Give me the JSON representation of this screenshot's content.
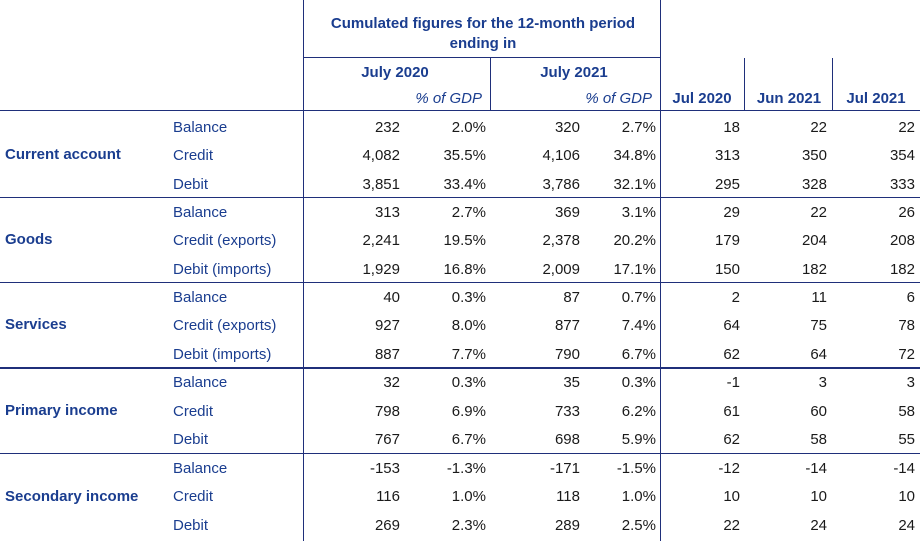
{
  "header": {
    "group_title": "Cumulated figures for the 12-month period ending in",
    "periods": [
      {
        "label": "July 2020",
        "sub": "% of GDP"
      },
      {
        "label": "July 2021",
        "sub": "% of GDP"
      }
    ],
    "months": [
      "Jul 2020",
      "Jun 2021",
      "Jul 2021"
    ]
  },
  "sections": [
    {
      "name": "Current account",
      "rows": [
        {
          "label": "Balance",
          "values": [
            "232",
            "2.0%",
            "320",
            "2.7%",
            "18",
            "22",
            "22"
          ]
        },
        {
          "label": "Credit",
          "values": [
            "4,082",
            "35.5%",
            "4,106",
            "34.8%",
            "313",
            "350",
            "354"
          ]
        },
        {
          "label": "Debit",
          "values": [
            "3,851",
            "33.4%",
            "3,786",
            "32.1%",
            "295",
            "328",
            "333"
          ]
        }
      ]
    },
    {
      "name": "Goods",
      "rows": [
        {
          "label": "Balance",
          "values": [
            "313",
            "2.7%",
            "369",
            "3.1%",
            "29",
            "22",
            "26"
          ]
        },
        {
          "label": "Credit (exports)",
          "values": [
            "2,241",
            "19.5%",
            "2,378",
            "20.2%",
            "179",
            "204",
            "208"
          ]
        },
        {
          "label": "Debit (imports)",
          "values": [
            "1,929",
            "16.8%",
            "2,009",
            "17.1%",
            "150",
            "182",
            "182"
          ]
        }
      ]
    },
    {
      "name": "Services",
      "rows": [
        {
          "label": "Balance",
          "values": [
            "40",
            "0.3%",
            "87",
            "0.7%",
            "2",
            "11",
            "6"
          ]
        },
        {
          "label": "Credit (exports)",
          "values": [
            "927",
            "8.0%",
            "877",
            "7.4%",
            "64",
            "75",
            "78"
          ]
        },
        {
          "label": "Debit (imports)",
          "values": [
            "887",
            "7.7%",
            "790",
            "6.7%",
            "62",
            "64",
            "72"
          ]
        }
      ]
    },
    {
      "name": "Primary income",
      "rows": [
        {
          "label": "Balance",
          "values": [
            "32",
            "0.3%",
            "35",
            "0.3%",
            "-1",
            "3",
            "3"
          ]
        },
        {
          "label": "Credit",
          "values": [
            "798",
            "6.9%",
            "733",
            "6.2%",
            "61",
            "60",
            "58"
          ]
        },
        {
          "label": "Debit",
          "values": [
            "767",
            "6.7%",
            "698",
            "5.9%",
            "62",
            "58",
            "55"
          ]
        }
      ]
    },
    {
      "name": "Secondary income",
      "rows": [
        {
          "label": "Balance",
          "values": [
            "-153",
            "-1.3%",
            "-171",
            "-1.5%",
            "-12",
            "-14",
            "-14"
          ]
        },
        {
          "label": "Credit",
          "values": [
            "116",
            "1.0%",
            "118",
            "1.0%",
            "10",
            "10",
            "10"
          ]
        },
        {
          "label": "Debit",
          "values": [
            "269",
            "2.3%",
            "289",
            "2.5%",
            "22",
            "24",
            "24"
          ]
        }
      ]
    }
  ]
}
